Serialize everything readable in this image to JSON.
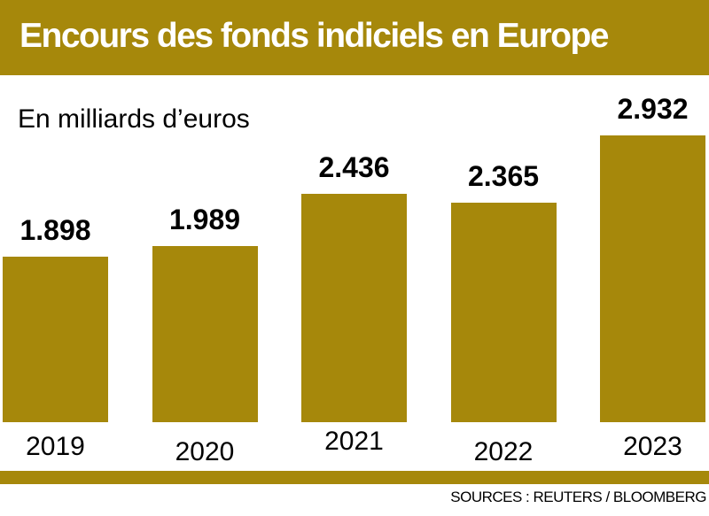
{
  "header": {
    "title": "Encours des fonds indiciels en Europe"
  },
  "chart": {
    "subtitle": "En milliards d’euros"
  },
  "footer": {
    "source": "SOURCES : REUTERS / BLOOMBERG"
  },
  "colors": {
    "gold": "#A6880B",
    "title_text": "#FFFFFF",
    "label_text": "#000000",
    "background": "#FFFFFF"
  },
  "chart_data": {
    "type": "bar",
    "title": "Encours des fonds indiciels en Europe",
    "subtitle": "En milliards d’euros",
    "unit": "milliards d’euros",
    "categories": [
      "2019",
      "2020",
      "2021",
      "2022",
      "2023"
    ],
    "values": [
      1.898,
      1.989,
      2.436,
      2.365,
      2.932
    ],
    "value_labels": [
      "1.898",
      "1.989",
      "2.436",
      "2.365",
      "2.932"
    ],
    "bar_color": "#A6880B",
    "ylim": [
      0.49,
      3.05
    ],
    "axis_truncated": true,
    "grid": false,
    "legend": false,
    "data_labels": "above bars",
    "source": "SOURCES : REUTERS / BLOOMBERG"
  }
}
